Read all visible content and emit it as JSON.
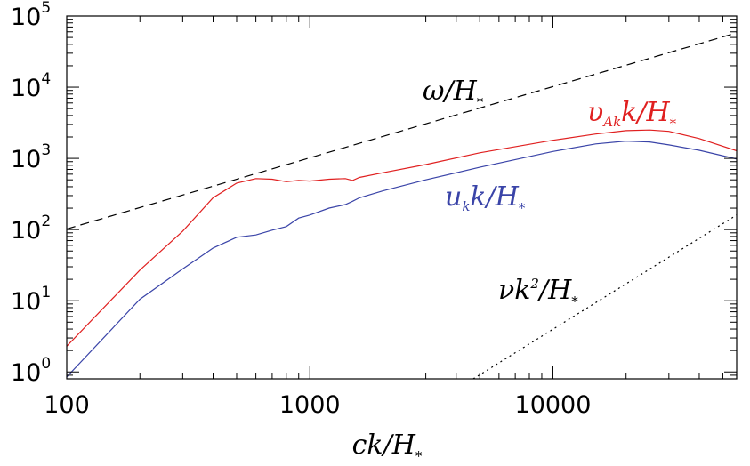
{
  "chart_data": {
    "type": "line",
    "xscale": "log",
    "yscale": "log",
    "xlim": [
      100,
      57000
    ],
    "ylim": [
      0.8,
      100000
    ],
    "xlabel": {
      "main": "ck/H",
      "sub": "*"
    },
    "ylabel": "",
    "grid": false,
    "x_ticks": [
      {
        "value": 100,
        "label": "100"
      },
      {
        "value": 1000,
        "label": "1000"
      },
      {
        "value": 10000,
        "label": "10000"
      }
    ],
    "y_ticks": [
      {
        "value": 1,
        "base": "10",
        "exp": "0"
      },
      {
        "value": 10,
        "base": "10",
        "exp": "1"
      },
      {
        "value": 100,
        "base": "10",
        "exp": "2"
      },
      {
        "value": 1000,
        "base": "10",
        "exp": "3"
      },
      {
        "value": 10000,
        "base": "10",
        "exp": "4"
      },
      {
        "value": 100000,
        "base": "10",
        "exp": "5"
      }
    ],
    "series": [
      {
        "key": "omega",
        "label_main": "ω/H",
        "label_sub": "",
        "label_tail": "",
        "label_star": "*",
        "color": "#000000",
        "dash": "10,6",
        "x": [
          100,
          57000
        ],
        "y": [
          102,
          58000
        ]
      },
      {
        "key": "alfven",
        "label_main": "υ",
        "label_sub": "Ak",
        "label_tail": "k/H",
        "label_star": "*",
        "color": "#e02020",
        "dash": "",
        "x": [
          100,
          200,
          300,
          400,
          500,
          600,
          700,
          800,
          900,
          1000,
          1200,
          1400,
          1500,
          1600,
          2000,
          3000,
          5000,
          10000,
          15000,
          20000,
          25000,
          30000,
          40000,
          57000
        ],
        "y": [
          2.3,
          27,
          95,
          280,
          450,
          520,
          510,
          470,
          490,
          480,
          510,
          520,
          490,
          540,
          630,
          820,
          1200,
          1800,
          2200,
          2450,
          2500,
          2400,
          1900,
          1280
        ]
      },
      {
        "key": "velocity",
        "label_main": "u",
        "label_sub": "k",
        "label_tail": "k/H",
        "label_star": "*",
        "color": "#3a44a8",
        "dash": "",
        "x": [
          100,
          200,
          300,
          400,
          500,
          600,
          700,
          800,
          900,
          1000,
          1200,
          1400,
          1500,
          1600,
          2000,
          3000,
          5000,
          10000,
          15000,
          20000,
          25000,
          30000,
          40000,
          57000
        ],
        "y": [
          0.85,
          10.5,
          28,
          55,
          78,
          84,
          98,
          110,
          145,
          160,
          200,
          225,
          250,
          280,
          350,
          500,
          750,
          1250,
          1600,
          1750,
          1700,
          1550,
          1300,
          980
        ]
      },
      {
        "key": "viscous",
        "label_main": "νk",
        "label_sub": "",
        "label_tail": "",
        "label_sup": "2",
        "label_after": "/H",
        "label_star": "*",
        "color": "#000000",
        "dash": "2,4",
        "x": [
          4700,
          57000
        ],
        "y": [
          0.8,
          160
        ]
      }
    ]
  }
}
